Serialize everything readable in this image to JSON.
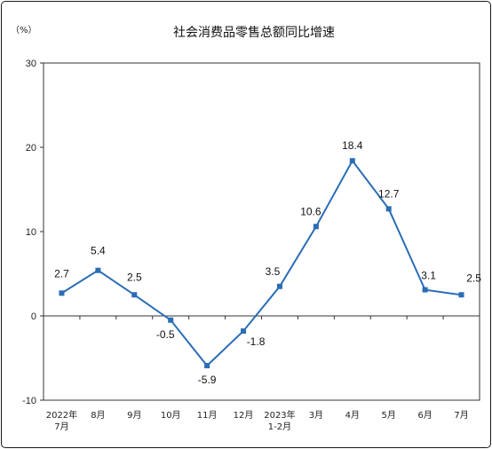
{
  "chart_data": {
    "type": "line",
    "title": "社会消费品零售总额同比增速",
    "ylabel": "（%）",
    "xlabel": "",
    "ylim": [
      -10,
      30
    ],
    "yticks": [
      -10,
      0,
      10,
      20,
      30
    ],
    "categories": [
      [
        "2022年",
        "7月"
      ],
      [
        "8月"
      ],
      [
        "9月"
      ],
      [
        "10月"
      ],
      [
        "11月"
      ],
      [
        "12月"
      ],
      [
        "2023年",
        "1-2月"
      ],
      [
        "3月"
      ],
      [
        "4月"
      ],
      [
        "5月"
      ],
      [
        "6月"
      ],
      [
        "7月"
      ]
    ],
    "series": [
      {
        "values": [
          2.7,
          5.4,
          2.5,
          -0.5,
          -5.9,
          -1.8,
          3.5,
          10.6,
          18.4,
          12.7,
          3.1,
          2.5
        ],
        "labels": [
          "2.7",
          "5.4",
          "2.5",
          "-0.5",
          "-5.9",
          "-1.8",
          "3.5",
          "10.6",
          "18.4",
          "12.7",
          "3.1",
          "2.5"
        ]
      }
    ],
    "grid": false,
    "line_color": "#2a6db5",
    "marker": "square",
    "zero_line": true
  }
}
